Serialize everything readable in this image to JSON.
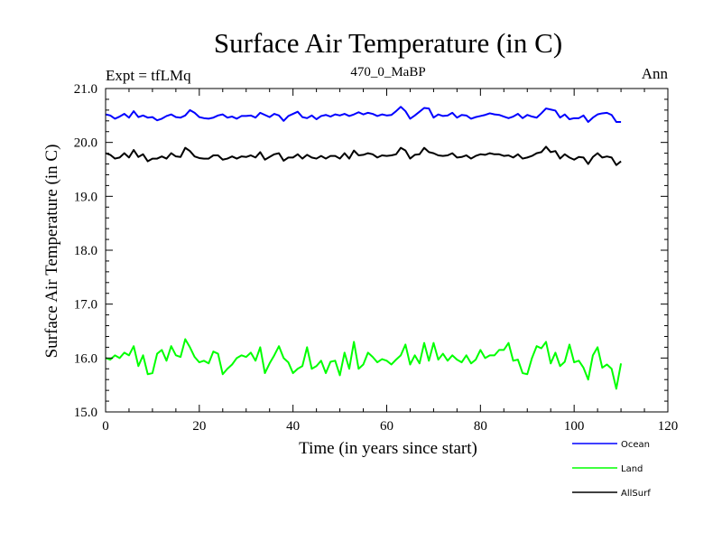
{
  "chart_data": {
    "type": "line",
    "title": "Surface Air Temperature (in C)",
    "subtitle": "470_0_MaBP",
    "expt_label": "Expt = tfLMq",
    "season_label": "Ann",
    "xlabel": "Time (in years since start)",
    "ylabel": "Surface Air Temperature (in C)",
    "xlim": [
      0,
      120
    ],
    "ylim": [
      15.0,
      21.0
    ],
    "x_ticks": [
      0,
      20,
      40,
      60,
      80,
      100,
      120
    ],
    "y_ticks": [
      15.0,
      16.0,
      17.0,
      18.0,
      19.0,
      20.0,
      21.0
    ],
    "x_tick_labels": [
      "0",
      "20",
      "40",
      "60",
      "80",
      "100",
      "120"
    ],
    "y_tick_labels": [
      "15.0",
      "16.0",
      "17.0",
      "18.0",
      "19.0",
      "20.0",
      "21.0"
    ],
    "grid": false,
    "legend_position": "bottom-right-outside",
    "series": [
      {
        "name": "Ocean",
        "color": "#0000ff",
        "values": [
          20.52,
          20.5,
          20.44,
          20.48,
          20.53,
          20.46,
          20.58,
          20.47,
          20.5,
          20.46,
          20.47,
          20.41,
          20.44,
          20.49,
          20.52,
          20.47,
          20.46,
          20.5,
          20.6,
          20.55,
          20.47,
          20.45,
          20.44,
          20.46,
          20.5,
          20.52,
          20.46,
          20.48,
          20.44,
          20.49,
          20.49,
          20.5,
          20.46,
          20.55,
          20.51,
          20.47,
          20.53,
          20.5,
          20.4,
          20.49,
          20.53,
          20.57,
          20.47,
          20.45,
          20.5,
          20.43,
          20.49,
          20.51,
          20.48,
          20.52,
          20.5,
          20.53,
          20.49,
          20.52,
          20.56,
          20.52,
          20.55,
          20.53,
          20.49,
          20.52,
          20.5,
          20.51,
          20.58,
          20.66,
          20.58,
          20.44,
          20.5,
          20.57,
          20.64,
          20.63,
          20.46,
          20.52,
          20.49,
          20.5,
          20.55,
          20.46,
          20.51,
          20.5,
          20.44,
          20.47,
          20.49,
          20.51,
          20.54,
          20.52,
          20.51,
          20.48,
          20.45,
          20.48,
          20.53,
          20.45,
          20.51,
          20.48,
          20.46,
          20.54,
          20.63,
          20.61,
          20.59,
          20.46,
          20.52,
          20.43,
          20.45,
          20.45,
          20.5,
          20.38,
          20.46,
          20.52,
          20.54,
          20.55,
          20.51,
          20.38,
          20.38
        ]
      },
      {
        "name": "Land",
        "color": "#00ff00",
        "values": [
          16.0,
          15.97,
          16.05,
          16.0,
          16.1,
          16.05,
          16.22,
          15.85,
          16.05,
          15.7,
          15.72,
          16.08,
          16.15,
          15.95,
          16.22,
          16.05,
          16.02,
          16.35,
          16.2,
          16.02,
          15.92,
          15.95,
          15.9,
          16.12,
          16.08,
          15.7,
          15.8,
          15.88,
          16.0,
          16.05,
          16.02,
          16.1,
          15.95,
          16.2,
          15.72,
          15.9,
          16.05,
          16.22,
          16.0,
          15.92,
          15.72,
          15.8,
          15.85,
          16.2,
          15.8,
          15.85,
          15.95,
          15.72,
          15.93,
          15.95,
          15.68,
          16.1,
          15.8,
          16.3,
          15.8,
          15.88,
          16.1,
          16.02,
          15.92,
          15.98,
          15.95,
          15.88,
          15.97,
          16.05,
          16.25,
          15.88,
          16.05,
          15.9,
          16.28,
          15.95,
          16.28,
          15.97,
          16.08,
          15.95,
          16.05,
          15.97,
          15.92,
          16.05,
          15.9,
          15.97,
          16.15,
          16.0,
          16.05,
          16.05,
          16.15,
          16.15,
          16.28,
          15.95,
          15.97,
          15.72,
          15.7,
          16.0,
          16.22,
          16.18,
          16.3,
          15.9,
          16.1,
          15.85,
          15.93,
          16.25,
          15.92,
          15.95,
          15.82,
          15.6,
          16.05,
          16.2,
          15.82,
          15.88,
          15.8,
          15.43,
          15.9
        ]
      },
      {
        "name": "AllSurf",
        "color": "#000000",
        "values": [
          19.8,
          19.77,
          19.7,
          19.72,
          19.8,
          19.72,
          19.86,
          19.73,
          19.78,
          19.65,
          19.7,
          19.7,
          19.74,
          19.7,
          19.8,
          19.74,
          19.73,
          19.9,
          19.84,
          19.74,
          19.71,
          19.7,
          19.7,
          19.76,
          19.76,
          19.68,
          19.7,
          19.74,
          19.7,
          19.74,
          19.73,
          19.76,
          19.72,
          19.82,
          19.68,
          19.73,
          19.78,
          19.8,
          19.66,
          19.72,
          19.72,
          19.78,
          19.7,
          19.77,
          19.72,
          19.7,
          19.75,
          19.7,
          19.75,
          19.75,
          19.7,
          19.8,
          19.7,
          19.85,
          19.76,
          19.77,
          19.8,
          19.78,
          19.72,
          19.76,
          19.75,
          19.76,
          19.78,
          19.9,
          19.85,
          19.7,
          19.77,
          19.78,
          19.9,
          19.82,
          19.8,
          19.76,
          19.75,
          19.76,
          19.8,
          19.72,
          19.73,
          19.76,
          19.7,
          19.75,
          19.78,
          19.77,
          19.8,
          19.78,
          19.78,
          19.75,
          19.76,
          19.72,
          19.78,
          19.7,
          19.72,
          19.75,
          19.8,
          19.82,
          19.92,
          19.82,
          19.84,
          19.7,
          19.78,
          19.72,
          19.68,
          19.73,
          19.72,
          19.6,
          19.73,
          19.8,
          19.72,
          19.74,
          19.72,
          19.58,
          19.65
        ]
      }
    ]
  }
}
